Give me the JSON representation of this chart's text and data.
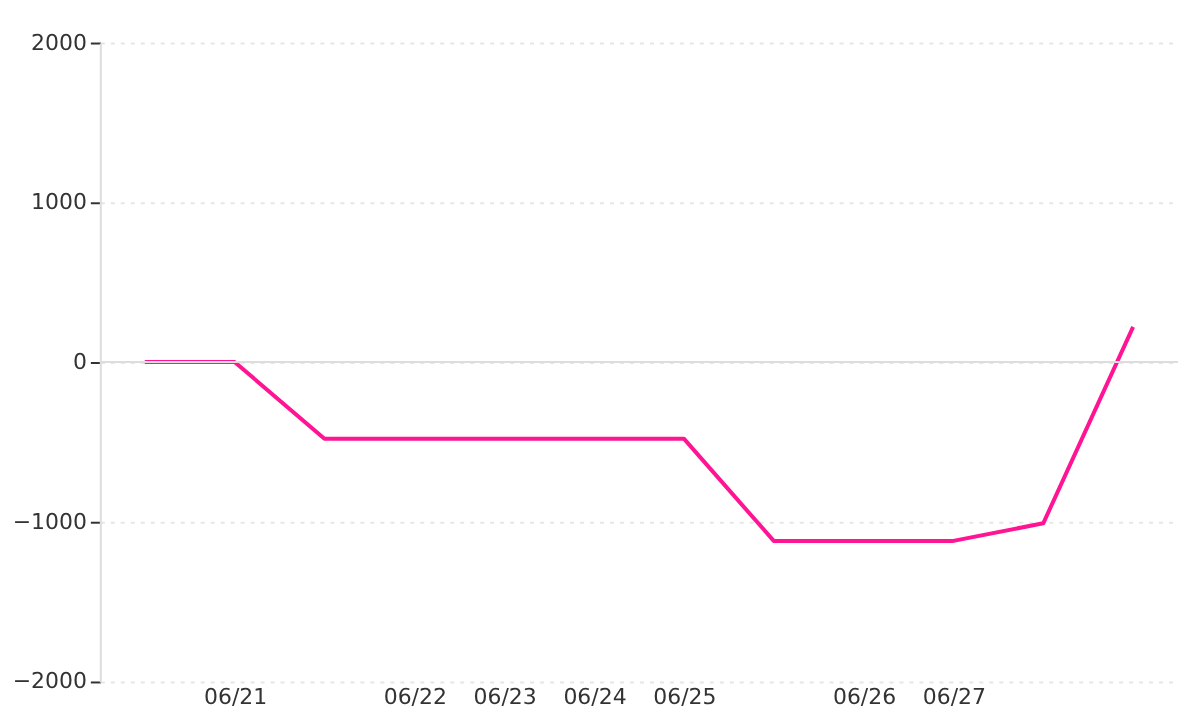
{
  "chart_data": {
    "type": "line",
    "categories": [
      null,
      "06/21",
      null,
      "06/22",
      "06/23",
      "06/24",
      "06/25",
      null,
      "06/26",
      "06/27",
      null,
      null
    ],
    "series": [
      {
        "color": "#ff1493",
        "values": [
          0,
          0,
          -480,
          -480,
          -480,
          -480,
          -480,
          -1120,
          -1120,
          -1120,
          -1010,
          220
        ]
      }
    ],
    "ylim": [
      -2000,
      2000
    ],
    "yticks": [
      -2000,
      -1000,
      0,
      1000,
      2000
    ],
    "grid": "y",
    "marker": "none",
    "line_style": "solid",
    "legend": false,
    "ref_lines": [
      {
        "axis": "y",
        "value": 0,
        "color": "#dddddd"
      }
    ]
  }
}
